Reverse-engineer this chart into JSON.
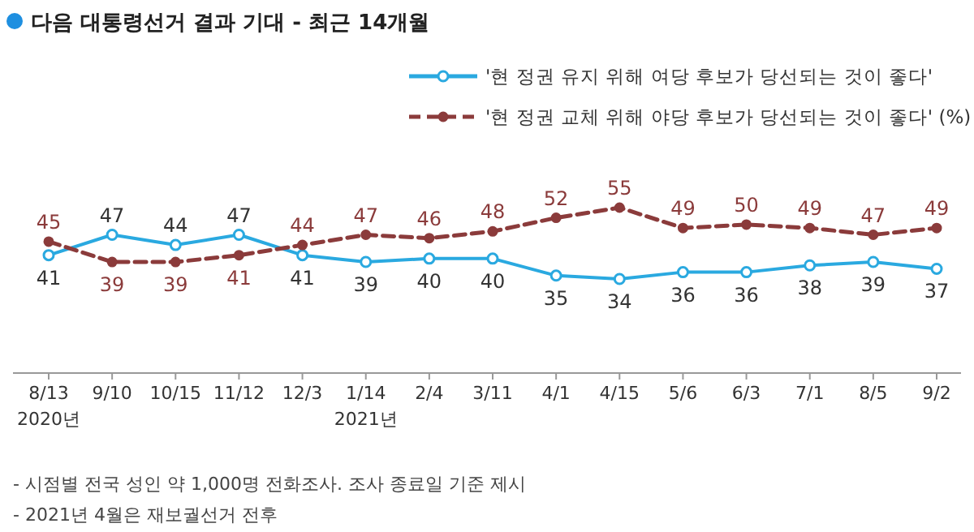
{
  "chart_data": {
    "type": "line",
    "title": "다음 대통령선거 결과 기대 - 최근 14개월",
    "categories": [
      "8/13\n2020년",
      "9/10",
      "10/15",
      "11/12",
      "12/3",
      "1/14\n2021년",
      "2/4",
      "3/11",
      "4/1",
      "4/15",
      "5/6",
      "6/3",
      "7/1",
      "8/5",
      "9/2"
    ],
    "series": [
      {
        "name": "'현 정권 유지 위해 여당 후보가 당선되는 것이 좋다'",
        "color": "#2aa9e0",
        "line_style": "solid",
        "marker": "circle",
        "values": [
          41,
          47,
          44,
          47,
          41,
          39,
          40,
          40,
          35,
          34,
          36,
          36,
          38,
          39,
          37
        ]
      },
      {
        "name": "'현 정권 교체 위해 야당 후보가 당선되는 것이 좋다' (%)",
        "color": "#8b3b3b",
        "line_style": "dashed",
        "marker": "circle",
        "values": [
          45,
          39,
          39,
          41,
          44,
          47,
          46,
          48,
          52,
          55,
          49,
          50,
          49,
          47,
          49
        ]
      }
    ],
    "tick_labels": "x",
    "data_labels": true,
    "legend": "top right",
    "grid": false,
    "annotations": [
      "- 시점별 전국 성인 약 1,000명 전화조사. 조사 종료일 기준 제시",
      "- 2021년 4월은 재보궐선거 전후"
    ]
  }
}
